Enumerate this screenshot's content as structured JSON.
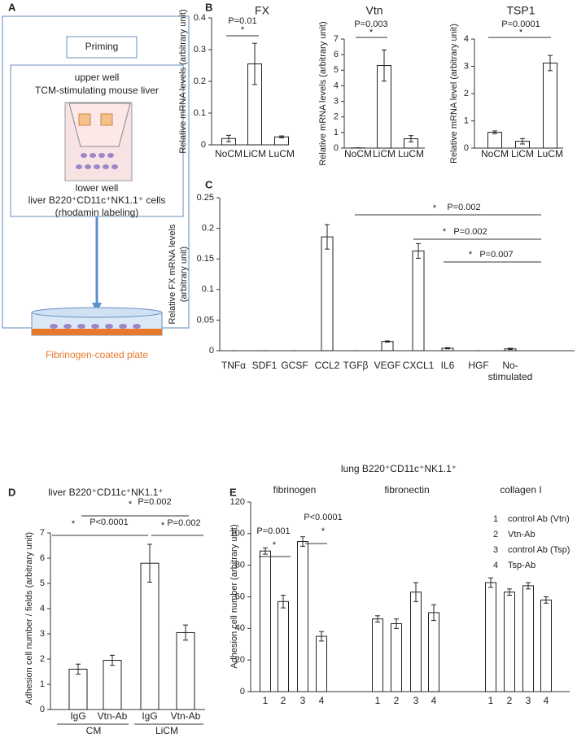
{
  "diagram": {
    "panel": "A",
    "priming": "Priming",
    "upper_well": "upper well",
    "upper_content": "TCM-stimulating mouse liver",
    "lower_well": "lower  well",
    "cells": "liver B220⁺CD11c⁺NK1.1⁺ cells",
    "labeling": "(rhodamin labeling)",
    "plate": "Fibrinogen-coated plate"
  },
  "chart_data": [
    {
      "type": "bar",
      "panel": "B",
      "title": "FX",
      "ylabel": [
        "Relative mRNA levels (arbitrary unit)"
      ],
      "categories": [
        "NoCM",
        "LiCM",
        "LuCM"
      ],
      "values": [
        0.02,
        0.255,
        0.025
      ],
      "errors": [
        0.01,
        0.065,
        0.003
      ],
      "ylim": [
        0,
        0.4
      ],
      "yticks": [
        0,
        0.1,
        0.2,
        0.3,
        0.4
      ],
      "color": "#ffffff",
      "annotations": [
        {
          "star": "*",
          "text": "P=0.01"
        }
      ]
    },
    {
      "type": "bar",
      "title": "Vtn",
      "ylabel": [
        "Relative mRNA levels (arbitrary unit)"
      ],
      "categories": [
        "NoCM",
        "LiCM",
        "LuCM"
      ],
      "values": [
        0.01,
        5.3,
        0.6
      ],
      "errors": [
        0.01,
        1.0,
        0.2
      ],
      "ylim": [
        0,
        7
      ],
      "yticks": [
        0,
        1,
        2,
        3,
        4,
        5,
        6,
        7
      ],
      "color": "#ffffff",
      "annotations": [
        {
          "star": "*",
          "text": "P=0.003"
        }
      ]
    },
    {
      "type": "bar",
      "title": "TSP1",
      "ylabel": [
        "Relative mRNA level (arbitrary unit)"
      ],
      "categories": [
        "NoCM",
        "LiCM",
        "LuCM"
      ],
      "values": [
        0.58,
        0.25,
        3.12
      ],
      "errors": [
        0.05,
        0.1,
        0.28
      ],
      "ylim": [
        0,
        4
      ],
      "yticks": [
        0,
        1,
        2,
        3,
        4
      ],
      "color": "#ffffff",
      "annotations": [
        {
          "star": "*",
          "text": "P=0.0001"
        }
      ]
    },
    {
      "type": "bar",
      "panel": "C",
      "ylabel": [
        "Relative FX mRNA levels",
        "(arbitrary unit)"
      ],
      "categories": [
        "TNFα",
        "SDF1",
        "GCSF",
        "CCL2",
        "TGFβ",
        "VEGF",
        "CXCL1",
        "IL6",
        "HGF",
        "No-\nstimulated"
      ],
      "values": [
        0,
        0,
        0,
        0.186,
        0,
        0.015,
        0.163,
        0.004,
        0,
        0.003
      ],
      "errors": [
        0,
        0,
        0,
        0.02,
        0,
        0.001,
        0.012,
        0.001,
        0,
        0.001
      ],
      "ylim": [
        0,
        0.25
      ],
      "yticks": [
        0,
        0.05,
        0.1,
        0.15,
        0.2,
        0.25
      ],
      "color": "#ffffff",
      "annotations": [
        {
          "star": "*",
          "text": "P=0.002"
        },
        {
          "star": "*",
          "text": "P=0.002"
        },
        {
          "star": "*",
          "text": "P=0.007"
        }
      ]
    },
    {
      "type": "bar",
      "panel": "D",
      "title": "liver B220⁺CD11c⁺NK1.1⁺",
      "ylabel": [
        "Adhesion cell number / fields (arbitrary unit)"
      ],
      "categories": [
        "IgG",
        "Vtn-Ab",
        "IgG",
        "Vtn-Ab"
      ],
      "groups": [
        "CM",
        "LiCM"
      ],
      "values": [
        1.6,
        1.95,
        5.8,
        3.05
      ],
      "errors": [
        0.2,
        0.2,
        0.75,
        0.3
      ],
      "ylim": [
        0,
        7
      ],
      "yticks": [
        0,
        1,
        2,
        3,
        4,
        5,
        6,
        7
      ],
      "color": "#ffffff",
      "annotations": [
        {
          "star": "*",
          "text": "P=0.002"
        },
        {
          "star": "*",
          "text": "P<0.0001"
        },
        {
          "star": "*",
          "text": "P=0.002"
        }
      ]
    },
    {
      "type": "bar",
      "panel": "E",
      "title": "lung B220⁺CD11c⁺NK1.1⁺",
      "ylabel": [
        "Adhesion cell number  (arbitrary unit)"
      ],
      "categories": [
        "1",
        "2",
        "3",
        "4",
        "1",
        "2",
        "3",
        "4",
        "1",
        "2",
        "3",
        "4"
      ],
      "groups": [
        "fibrinogen",
        "fibronectin",
        "collagen I"
      ],
      "values": [
        89,
        57,
        95,
        35,
        46,
        43,
        63,
        50,
        69,
        63,
        67,
        58
      ],
      "errors": [
        2,
        4,
        3,
        3,
        2,
        3,
        6,
        5,
        3,
        2,
        2,
        2
      ],
      "ylim": [
        0,
        120
      ],
      "yticks": [
        0,
        20,
        40,
        60,
        80,
        100,
        120
      ],
      "color": "#ffffff",
      "legend": [
        {
          "key": "1",
          "label": "control Ab (Vtn)"
        },
        {
          "key": "2",
          "label": "Vtn-Ab"
        },
        {
          "key": "3",
          "label": "control Ab (Tsp)"
        },
        {
          "key": "4",
          "label": "Tsp-Ab"
        }
      ],
      "annotations": [
        {
          "star": "*",
          "text": "P=0.001"
        },
        {
          "star": "*",
          "text": "P<0.0001"
        }
      ]
    }
  ]
}
